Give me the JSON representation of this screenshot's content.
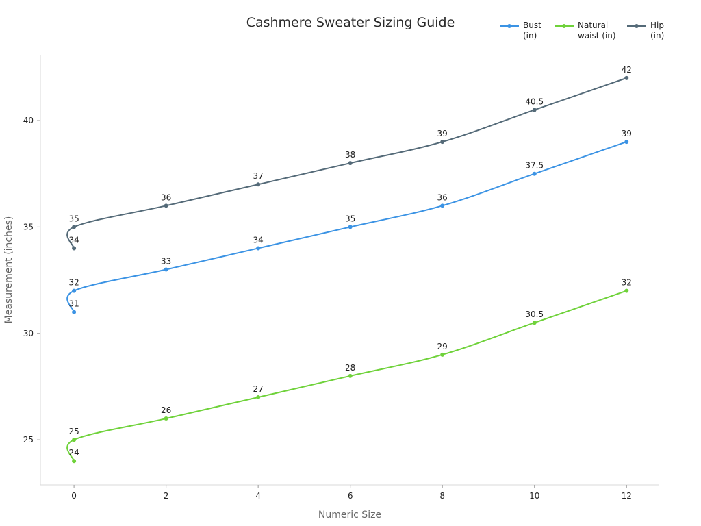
{
  "chart_data": {
    "type": "line",
    "title": "Cashmere Sweater Sizing Guide",
    "xlabel": "Numeric Size",
    "ylabel": "Measurement (inches)",
    "x": [
      0,
      0,
      2,
      4,
      6,
      8,
      10,
      12
    ],
    "xlim": [
      -0.73,
      12.71
    ],
    "ylim": [
      22.88,
      43.09
    ],
    "xticks": [
      0,
      2,
      4,
      6,
      8,
      10,
      12
    ],
    "yticks": [
      25,
      30,
      35,
      40
    ],
    "grid": false,
    "legend_position": "top-right",
    "smooth": true,
    "series": [
      {
        "name": "Bust (in)",
        "color": "#3b93e4",
        "values": [
          31,
          32,
          33,
          34,
          35,
          36,
          37.5,
          39
        ]
      },
      {
        "name": "Natural waist (in)",
        "color": "#6fd23a",
        "values": [
          24,
          25,
          26,
          27,
          28,
          29,
          30.5,
          32
        ]
      },
      {
        "name": "Hip (in)",
        "color": "#546a78",
        "values": [
          34,
          35,
          36,
          37,
          38,
          39,
          40.5,
          42
        ]
      }
    ]
  }
}
